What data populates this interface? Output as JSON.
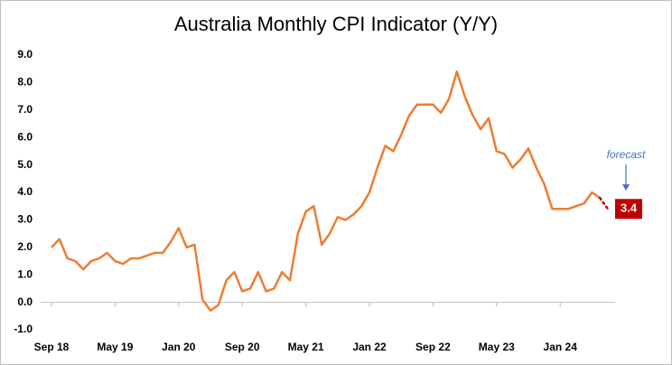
{
  "chart_data": {
    "type": "line",
    "title": "Australia Monthly CPI Indicator (Y/Y)",
    "categories": [
      "Sep 18",
      null,
      null,
      null,
      null,
      null,
      null,
      null,
      "May 19",
      null,
      null,
      null,
      null,
      null,
      null,
      null,
      "Jan 20",
      null,
      null,
      null,
      null,
      null,
      null,
      null,
      "Sep 20",
      null,
      null,
      null,
      null,
      null,
      null,
      null,
      "May 21",
      null,
      null,
      null,
      null,
      null,
      null,
      null,
      "Jan 22",
      null,
      null,
      null,
      null,
      null,
      null,
      null,
      "Sep 22",
      null,
      null,
      null,
      null,
      null,
      null,
      null,
      "May 23",
      null,
      null,
      null,
      null,
      null,
      null,
      null,
      "Jan 24",
      null,
      null,
      null,
      null,
      null,
      null
    ],
    "series": [
      {
        "color": "#ed7d31",
        "values": [
          2.0,
          2.3,
          1.6,
          1.5,
          1.2,
          1.5,
          1.6,
          1.8,
          1.5,
          1.4,
          1.6,
          1.6,
          1.7,
          1.8,
          1.8,
          2.2,
          2.7,
          2.0,
          2.1,
          0.1,
          -0.3,
          -0.1,
          0.8,
          1.1,
          0.4,
          0.5,
          1.1,
          0.4,
          0.5,
          1.1,
          0.8,
          2.5,
          3.3,
          3.5,
          2.1,
          2.5,
          3.1,
          3.0,
          3.2,
          3.5,
          4.0,
          4.9,
          5.7,
          5.5,
          6.1,
          6.8,
          7.2,
          7.2,
          7.2,
          6.9,
          7.4,
          8.4,
          7.5,
          6.8,
          6.3,
          6.7,
          5.5,
          5.4,
          4.9,
          5.2,
          5.6,
          4.9,
          4.3,
          3.4,
          3.4,
          3.4,
          3.5,
          3.6,
          4.0,
          3.8,
          null
        ]
      },
      {
        "name": "forecast",
        "color": "#c00000",
        "dashed": true,
        "values": [
          null,
          null,
          null,
          null,
          null,
          null,
          null,
          null,
          null,
          null,
          null,
          null,
          null,
          null,
          null,
          null,
          null,
          null,
          null,
          null,
          null,
          null,
          null,
          null,
          null,
          null,
          null,
          null,
          null,
          null,
          null,
          null,
          null,
          null,
          null,
          null,
          null,
          null,
          null,
          null,
          null,
          null,
          null,
          null,
          null,
          null,
          null,
          null,
          null,
          null,
          null,
          null,
          null,
          null,
          null,
          null,
          null,
          null,
          null,
          null,
          null,
          null,
          null,
          null,
          null,
          null,
          null,
          null,
          null,
          3.8,
          3.4
        ]
      }
    ],
    "ylim": [
      -1,
      9
    ],
    "yticks": [
      {
        "value": -1,
        "label": "-1.0"
      },
      {
        "value": 0,
        "label": "0.0"
      },
      {
        "value": 1,
        "label": "1.0"
      },
      {
        "value": 2,
        "label": "2.0"
      },
      {
        "value": 3,
        "label": "3.0"
      },
      {
        "value": 4,
        "label": "4.0"
      },
      {
        "value": 5,
        "label": "5.0"
      },
      {
        "value": 6,
        "label": "6.0"
      },
      {
        "value": 7,
        "label": "7.0"
      },
      {
        "value": 8,
        "label": "8.0"
      },
      {
        "value": 9,
        "label": "9.0"
      }
    ],
    "grid": false
  }
}
